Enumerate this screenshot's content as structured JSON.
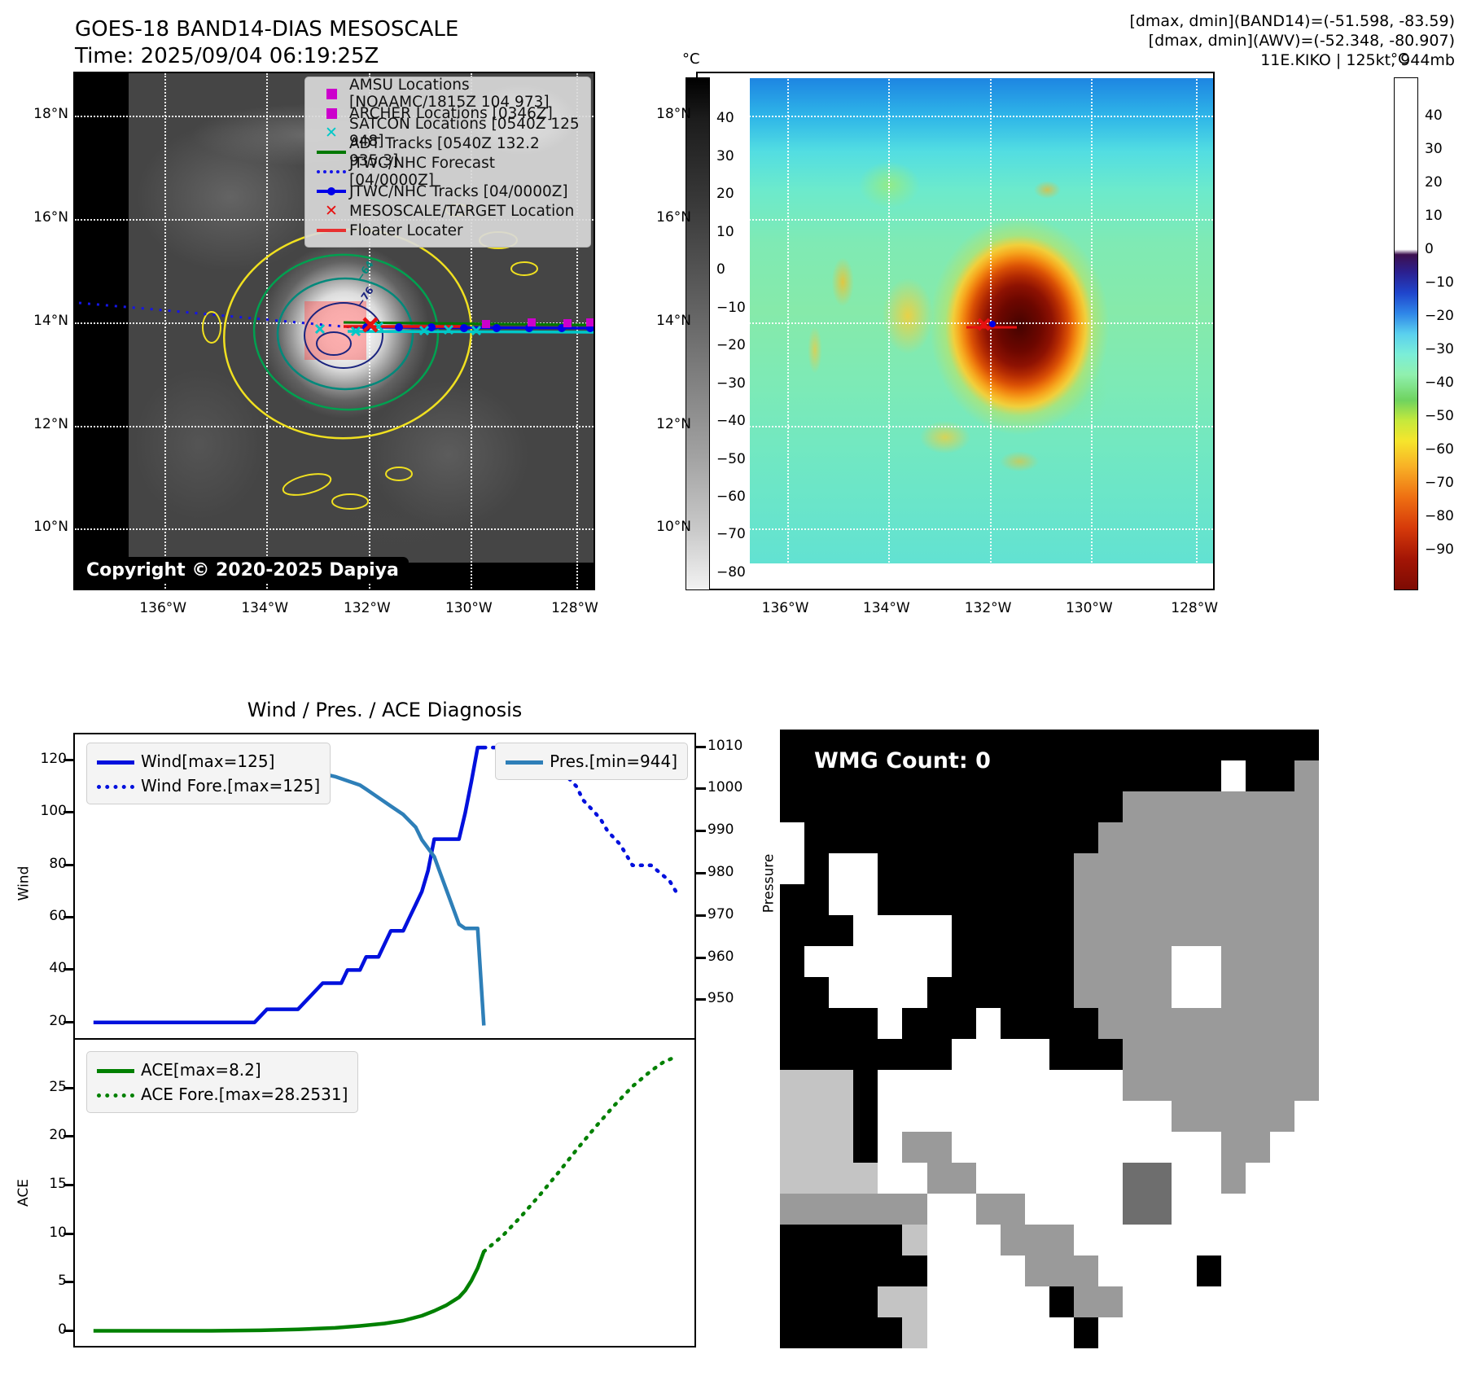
{
  "header": {
    "title": "GOES-18 BAND14-DIAS MESOSCALE",
    "subtitle": "Time: 2025/09/04 06:19:25Z",
    "info_line1": "[dmax, dmin](BAND14)=(-51.598, -83.59)",
    "info_line2": "[dmax, dmin](AWV)=(-52.348, -80.907)",
    "info_line3": "11E.KIKO | 125kt, 944mb"
  },
  "panel_band14": {
    "copyright": "Copyright © 2020-2025 Dapiya",
    "legend": [
      {
        "marker": "square",
        "color": "#cc00cc",
        "label": "AMSU Locations [NOAAMC/1815Z 104 973]"
      },
      {
        "marker": "square",
        "color": "#cc00cc",
        "label": "ARCHER Locations [0346Z]"
      },
      {
        "marker": "x",
        "color": "#00c8c8",
        "label": "SATCON Locations [0540Z 125 948]"
      },
      {
        "marker": "line",
        "color": "#007800",
        "label": "ADT Tracks [0540Z 132.2 935.3]"
      },
      {
        "marker": "dotted",
        "color": "#1515e8",
        "label": "JTWC/NHC Forecast [04/0000Z]"
      },
      {
        "marker": "line-dot",
        "color": "#0000e8",
        "label": "JTWC/NHC Tracks [04/0000Z]"
      },
      {
        "marker": "x",
        "color": "#e81010",
        "label": "MESOSCALE/TARGET Location"
      },
      {
        "marker": "line",
        "color": "#e83030",
        "label": "Floater Locater"
      }
    ],
    "lat_ticks": [
      "18°N",
      "16°N",
      "14°N",
      "12°N",
      "10°N"
    ],
    "lon_ticks": [
      "136°W",
      "134°W",
      "132°W",
      "130°W",
      "128°W"
    ],
    "colorbar": {
      "unit": "°C",
      "ticks": [
        "40",
        "30",
        "20",
        "10",
        "0",
        "−10",
        "−20",
        "−30",
        "−40",
        "−50",
        "−60",
        "−70",
        "−80"
      ]
    },
    "contour_labels": {
      "outer": "−64",
      "inner": "−76"
    }
  },
  "panel_awv": {
    "lat_ticks": [
      "18°N",
      "16°N",
      "14°N",
      "12°N",
      "10°N"
    ],
    "lon_ticks": [
      "136°W",
      "134°W",
      "132°W",
      "130°W",
      "128°W"
    ],
    "colorbar": {
      "unit": "°C",
      "ticks": [
        "40",
        "30",
        "20",
        "10",
        "0",
        "−10",
        "−20",
        "−30",
        "−40",
        "−50",
        "−60",
        "−70",
        "−80",
        "−90"
      ]
    }
  },
  "charts": {
    "title": "Wind / Pres. / ACE Diagnosis",
    "wind_ylabel": "Wind",
    "pressure_ylabel": "Pressure",
    "ace_ylabel": "ACE"
  },
  "chart_data": [
    {
      "type": "line",
      "subplot": "wind-pressure",
      "title": "Wind / Pres. / ACE Diagnosis",
      "ylabel_left": "Wind",
      "ylabel_right": "Pressure",
      "ylim_left": [
        14,
        130
      ],
      "yticks_left": [
        20,
        40,
        60,
        80,
        100,
        120
      ],
      "ylim_right": [
        941,
        1013
      ],
      "yticks_right": [
        950,
        960,
        970,
        980,
        990,
        1000,
        1010
      ],
      "xlim": [
        0,
        100
      ],
      "grid": false,
      "series": [
        {
          "name": "Wind[max=125]",
          "axis": "left",
          "style": "solid",
          "color": "#0010dd",
          "points": [
            [
              3,
              20
            ],
            [
              29,
              20
            ],
            [
              31,
              25
            ],
            [
              36,
              25
            ],
            [
              38,
              30
            ],
            [
              40,
              35
            ],
            [
              43,
              35
            ],
            [
              44,
              40
            ],
            [
              46,
              40
            ],
            [
              47,
              45
            ],
            [
              49,
              45
            ],
            [
              50,
              50
            ],
            [
              51,
              55
            ],
            [
              53,
              55
            ],
            [
              54,
              60
            ],
            [
              55,
              65
            ],
            [
              56,
              70
            ],
            [
              57,
              78
            ],
            [
              58,
              90
            ],
            [
              62,
              90
            ],
            [
              63,
              100
            ],
            [
              64,
              112
            ],
            [
              65,
              125
            ],
            [
              66,
              125
            ]
          ]
        },
        {
          "name": "Wind Fore.[max=125]",
          "axis": "left",
          "style": "dotted",
          "color": "#0010dd",
          "points": [
            [
              66,
              125
            ],
            [
              75,
              125
            ],
            [
              77,
              120
            ],
            [
              79,
              115
            ],
            [
              81,
              110
            ],
            [
              82,
              105
            ],
            [
              84,
              100
            ],
            [
              85,
              97
            ],
            [
              86,
              93
            ],
            [
              88,
              88
            ],
            [
              89,
              84
            ],
            [
              90,
              80
            ],
            [
              93,
              80
            ],
            [
              94,
              78
            ],
            [
              96,
              74
            ],
            [
              97,
              70
            ]
          ]
        },
        {
          "name": "Pres.[min=944]",
          "axis": "right",
          "style": "solid",
          "color": "#2e7fb8",
          "points": [
            [
              3,
              1008
            ],
            [
              18,
              1008
            ],
            [
              26,
              1007
            ],
            [
              32,
              1006
            ],
            [
              36,
              1005
            ],
            [
              39,
              1004
            ],
            [
              42,
              1003
            ],
            [
              44,
              1002
            ],
            [
              46,
              1001
            ],
            [
              47,
              1000
            ],
            [
              49,
              998
            ],
            [
              51,
              996
            ],
            [
              53,
              994
            ],
            [
              55,
              991
            ],
            [
              56,
              988
            ],
            [
              58,
              984
            ],
            [
              59,
              980
            ],
            [
              60,
              976
            ],
            [
              61,
              972
            ],
            [
              62,
              968
            ],
            [
              63,
              967
            ],
            [
              65,
              967
            ],
            [
              66,
              944
            ]
          ]
        }
      ]
    },
    {
      "type": "line",
      "subplot": "ace",
      "ylabel_left": "ACE",
      "ylim_left": [
        -1.5,
        30
      ],
      "yticks_left": [
        0,
        5,
        10,
        15,
        20,
        25
      ],
      "xlim": [
        0,
        100
      ],
      "grid": false,
      "series": [
        {
          "name": "ACE[max=8.2]",
          "axis": "left",
          "style": "solid",
          "color": "#008000",
          "points": [
            [
              3,
              0.05
            ],
            [
              22,
              0.05
            ],
            [
              30,
              0.1
            ],
            [
              36,
              0.2
            ],
            [
              42,
              0.35
            ],
            [
              46,
              0.55
            ],
            [
              50,
              0.8
            ],
            [
              53,
              1.1
            ],
            [
              56,
              1.6
            ],
            [
              58,
              2.1
            ],
            [
              60,
              2.7
            ],
            [
              62,
              3.5
            ],
            [
              63,
              4.2
            ],
            [
              64,
              5.2
            ],
            [
              65,
              6.5
            ],
            [
              66,
              8.2
            ]
          ]
        },
        {
          "name": "ACE Fore.[max=28.2531]",
          "axis": "left",
          "style": "dotted",
          "color": "#008000",
          "points": [
            [
              66,
              8.2
            ],
            [
              69,
              9.8
            ],
            [
              72,
              11.8
            ],
            [
              75,
              14
            ],
            [
              78,
              16.3
            ],
            [
              81,
              18.7
            ],
            [
              84,
              21
            ],
            [
              87,
              23.2
            ],
            [
              90,
              25.2
            ],
            [
              93,
              26.8
            ],
            [
              95,
              27.7
            ],
            [
              97,
              28.25
            ]
          ]
        }
      ]
    }
  ],
  "panel_wmg": {
    "count_label": "WMG Count: 0",
    "palette": {
      "K": "#000000",
      "W": "#ffffff",
      "G": "#9a9a9a",
      "L": "#c4c4c4",
      "D": "#6e6e6e"
    },
    "grid": [
      "KKKKKKKKKKKKKKKKKKKKKK",
      "KKKKKKKKKKKKKKKKKKWKKG",
      "KKKKKKKKKKKKKKGGGGGGGG",
      "WKKKKKKKKKKKKGGGGGGGGG",
      "WKWWKKKKKKKKGGGGGGGGGG",
      "KKWWKKKKKKKKGGGGGGGGGG",
      "KKKWWWWKKKKKGGGGGGGGGG",
      "KWWWWWWKKKKKGGGGWWGGGG",
      "KKWWWWKKKKKKGGGGWWGGGG",
      "KKKKWKKKWKKKKGGGGGGGGG",
      "KKKKKKKWWWWKKKGGGGGGGG",
      "LLLKWWWWWWWWWWGGGGGGGG",
      "LLLKWWWWWWWWWWWWGGGGGW",
      "LLLKWGGWWWWWWWWWWWGGWW",
      "LLLLWWGGWWWWWWDDWWGWWW",
      "GGGGGGWWGGWWWWDDWWWWWW",
      "KKKKKLWWWGGGWWWWWWWWWW",
      "KKKKKKWWWWGGGWWWWKWWWW",
      "KKKKLLWWWWWKGGWWWWWWWW",
      "KKKKKLWWWWWWKWWWWWWWWW"
    ]
  }
}
